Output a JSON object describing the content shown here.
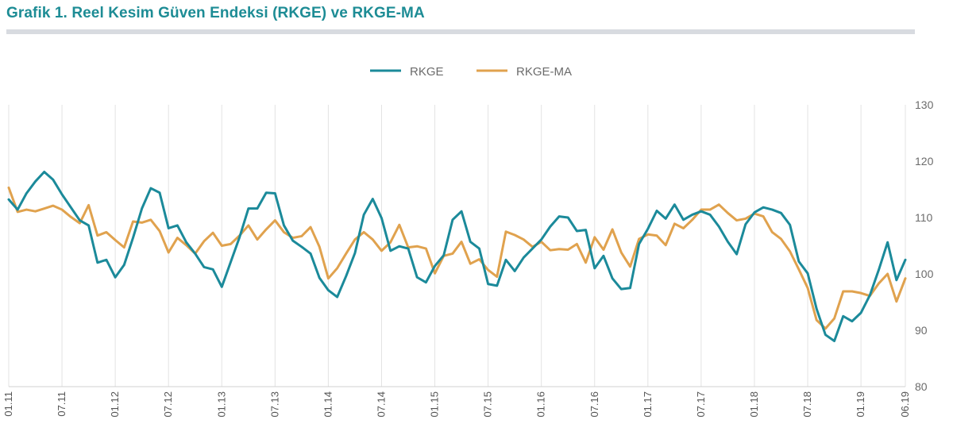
{
  "title": "Grafik 1. Reel Kesim Güven Endeksi (RKGE) ve RKGE-MA",
  "colors": {
    "rkge": "#1b8a9a",
    "rkge_ma": "#e0a24e",
    "title": "#1d8c95"
  },
  "chart_data": {
    "type": "line",
    "title": "Grafik 1. Reel Kesim Güven Endeksi (RKGE) ve RKGE-MA",
    "legend_position": "top-center",
    "grid": "vertical",
    "ylim": [
      80,
      130
    ],
    "yticks": [
      80,
      90,
      100,
      110,
      120,
      130
    ],
    "y_axis_side": "right",
    "x_tick_labels": [
      "01.11",
      "07.11",
      "01.12",
      "07.12",
      "01.13",
      "07.13",
      "01.14",
      "07.14",
      "01.15",
      "07.15",
      "01.16",
      "07.16",
      "01.17",
      "07.17",
      "01.18",
      "07.18",
      "01.19",
      "06.19"
    ],
    "x_tick_months": [
      0,
      6,
      12,
      18,
      24,
      30,
      36,
      42,
      48,
      54,
      60,
      66,
      72,
      78,
      84,
      90,
      96,
      101
    ],
    "series": [
      {
        "name": "RKGE",
        "color": "#1b8a9a",
        "values": [
          113.2,
          111.4,
          114.3,
          116.4,
          118.1,
          116.7,
          114.1,
          111.8,
          109.5,
          108.6,
          102,
          102.5,
          99.4,
          101.6,
          106.4,
          111.6,
          115.2,
          114.4,
          108.1,
          108.6,
          105.6,
          103.6,
          101.2,
          100.8,
          97.7,
          102.1,
          106.5,
          111.6,
          111.6,
          114.4,
          114.3,
          108.6,
          105.9,
          104.8,
          103.6,
          99.3,
          97.1,
          95.9,
          99.6,
          103.7,
          110.5,
          113.3,
          109.9,
          104.1,
          104.9,
          104.5,
          99.4,
          98.5,
          101.4,
          103.3,
          109.6,
          111.1,
          105.7,
          104.5,
          98.2,
          97.9,
          102.5,
          100.5,
          102.9,
          104.5,
          106.1,
          108.4,
          110.2,
          110,
          107.6,
          107.8,
          101,
          103.2,
          99.2,
          97.3,
          97.5,
          105.3,
          108,
          111.2,
          109.8,
          112.3,
          109.6,
          110.5,
          111.1,
          110.5,
          108.4,
          105.7,
          103.5,
          108.8,
          110.9,
          111.8,
          111.4,
          110.8,
          108.7,
          102.2,
          100.1,
          93.8,
          89.2,
          88.1,
          92.5,
          91.6,
          93.1,
          96.2,
          100.7,
          105.6,
          98.9,
          102.5
        ]
      },
      {
        "name": "RKGE-MA",
        "color": "#e0a24e",
        "values": [
          115.3,
          111,
          111.4,
          111.1,
          111.6,
          112.1,
          111.4,
          110.1,
          109,
          112.2,
          106.8,
          107.4,
          106,
          104.7,
          109.3,
          109.1,
          109.6,
          107.6,
          103.8,
          106.4,
          105.1,
          103.6,
          105.8,
          107.3,
          105,
          105.3,
          106.8,
          108.6,
          106.1,
          107.9,
          109.5,
          107.4,
          106.4,
          106.7,
          108.3,
          104.8,
          99.2,
          101,
          103.6,
          106.1,
          107.4,
          106.1,
          104.1,
          105.6,
          108.7,
          104.7,
          104.9,
          104.5,
          100.1,
          103.2,
          103.6,
          105.7,
          101.8,
          102.6,
          100.7,
          99.5,
          107.5,
          106.9,
          106.1,
          104.8,
          105.7,
          104.2,
          104.4,
          104.3,
          105.3,
          102,
          106.5,
          104.3,
          107.9,
          103.8,
          101.3,
          106.2,
          107,
          106.8,
          105.1,
          108.9,
          108.1,
          109.6,
          111.4,
          111.4,
          112.3,
          110.8,
          109.5,
          109.8,
          110.7,
          110.2,
          107.4,
          106.2,
          104,
          100.8,
          97.5,
          91.8,
          90.3,
          92.1,
          96.9,
          96.9,
          96.6,
          96.1,
          98.3,
          100,
          95.1,
          99.2
        ]
      }
    ]
  }
}
